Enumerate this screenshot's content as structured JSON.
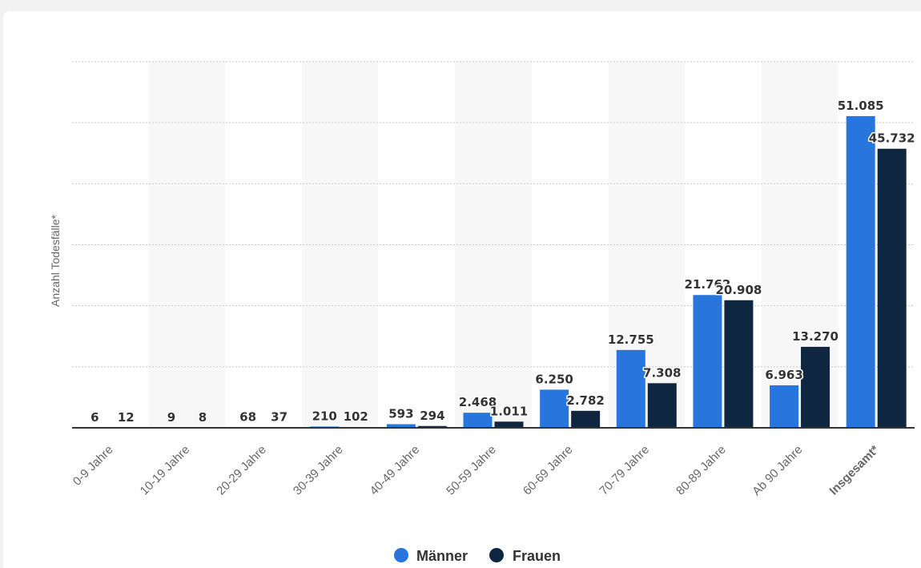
{
  "chart_data": {
    "type": "bar",
    "ylabel": "Anzahl Todesfälle*",
    "ylim": [
      0,
      60000
    ],
    "y_grid_step": 10000,
    "y_tick_labels_shown": false,
    "grid": true,
    "legend_position": "bottom-center",
    "categories": [
      "0-9 Jahre",
      "10-19 Jahre",
      "20-29 Jahre",
      "30-39 Jahre",
      "40-49 Jahre",
      "50-59 Jahre",
      "60-69 Jahre",
      "70-79 Jahre",
      "80-89 Jahre",
      "Ab 90 Jahre",
      "Insgesamt*"
    ],
    "bold_categories": [
      "Insgesamt*"
    ],
    "series": [
      {
        "name": "Männer",
        "color": "#2876dd",
        "values": [
          6,
          9,
          68,
          210,
          593,
          2468,
          6250,
          12755,
          21762,
          6963,
          51085
        ],
        "labels": [
          "6",
          "9",
          "68",
          "210",
          "593",
          "2.468",
          "6.250",
          "12.755",
          "21.762",
          "6.963",
          "51.085"
        ]
      },
      {
        "name": "Frauen",
        "color": "#0f2640",
        "values": [
          12,
          8,
          37,
          102,
          294,
          1011,
          2782,
          7308,
          20908,
          13270,
          45732
        ],
        "labels": [
          "12",
          "8",
          "37",
          "102",
          "294",
          "1.011",
          "2.782",
          "7.308",
          "20.908",
          "13.270",
          "45.732"
        ]
      }
    ]
  }
}
